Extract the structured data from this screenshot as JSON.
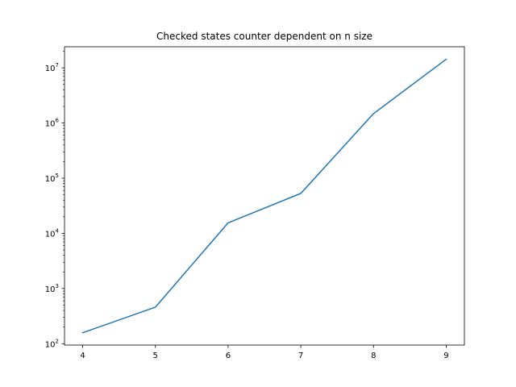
{
  "chart_data": {
    "type": "line",
    "title": "Checked states counter dependent on n size",
    "xlabel": "",
    "ylabel": "",
    "x": [
      4,
      5,
      6,
      7,
      8,
      9
    ],
    "series": [
      {
        "values": [
          158,
          460,
          15500,
          53000,
          1480000,
          14300000
        ],
        "color": "#1f77b4"
      }
    ],
    "xticks": [
      4,
      5,
      6,
      7,
      8,
      9
    ],
    "xtick_labels": [
      "4",
      "5",
      "6",
      "7",
      "8",
      "9"
    ],
    "yscale": "log",
    "yticks": [
      100,
      1000,
      10000,
      100000,
      1000000,
      10000000
    ],
    "ytick_labels": [
      {
        "base": "10",
        "exp": "2"
      },
      {
        "base": "10",
        "exp": "3"
      },
      {
        "base": "10",
        "exp": "4"
      },
      {
        "base": "10",
        "exp": "5"
      },
      {
        "base": "10",
        "exp": "6"
      },
      {
        "base": "10",
        "exp": "7"
      }
    ],
    "xlim": [
      3.75,
      9.25
    ],
    "ylim": [
      94.5,
      24100000
    ],
    "grid": false,
    "legend": "none"
  }
}
